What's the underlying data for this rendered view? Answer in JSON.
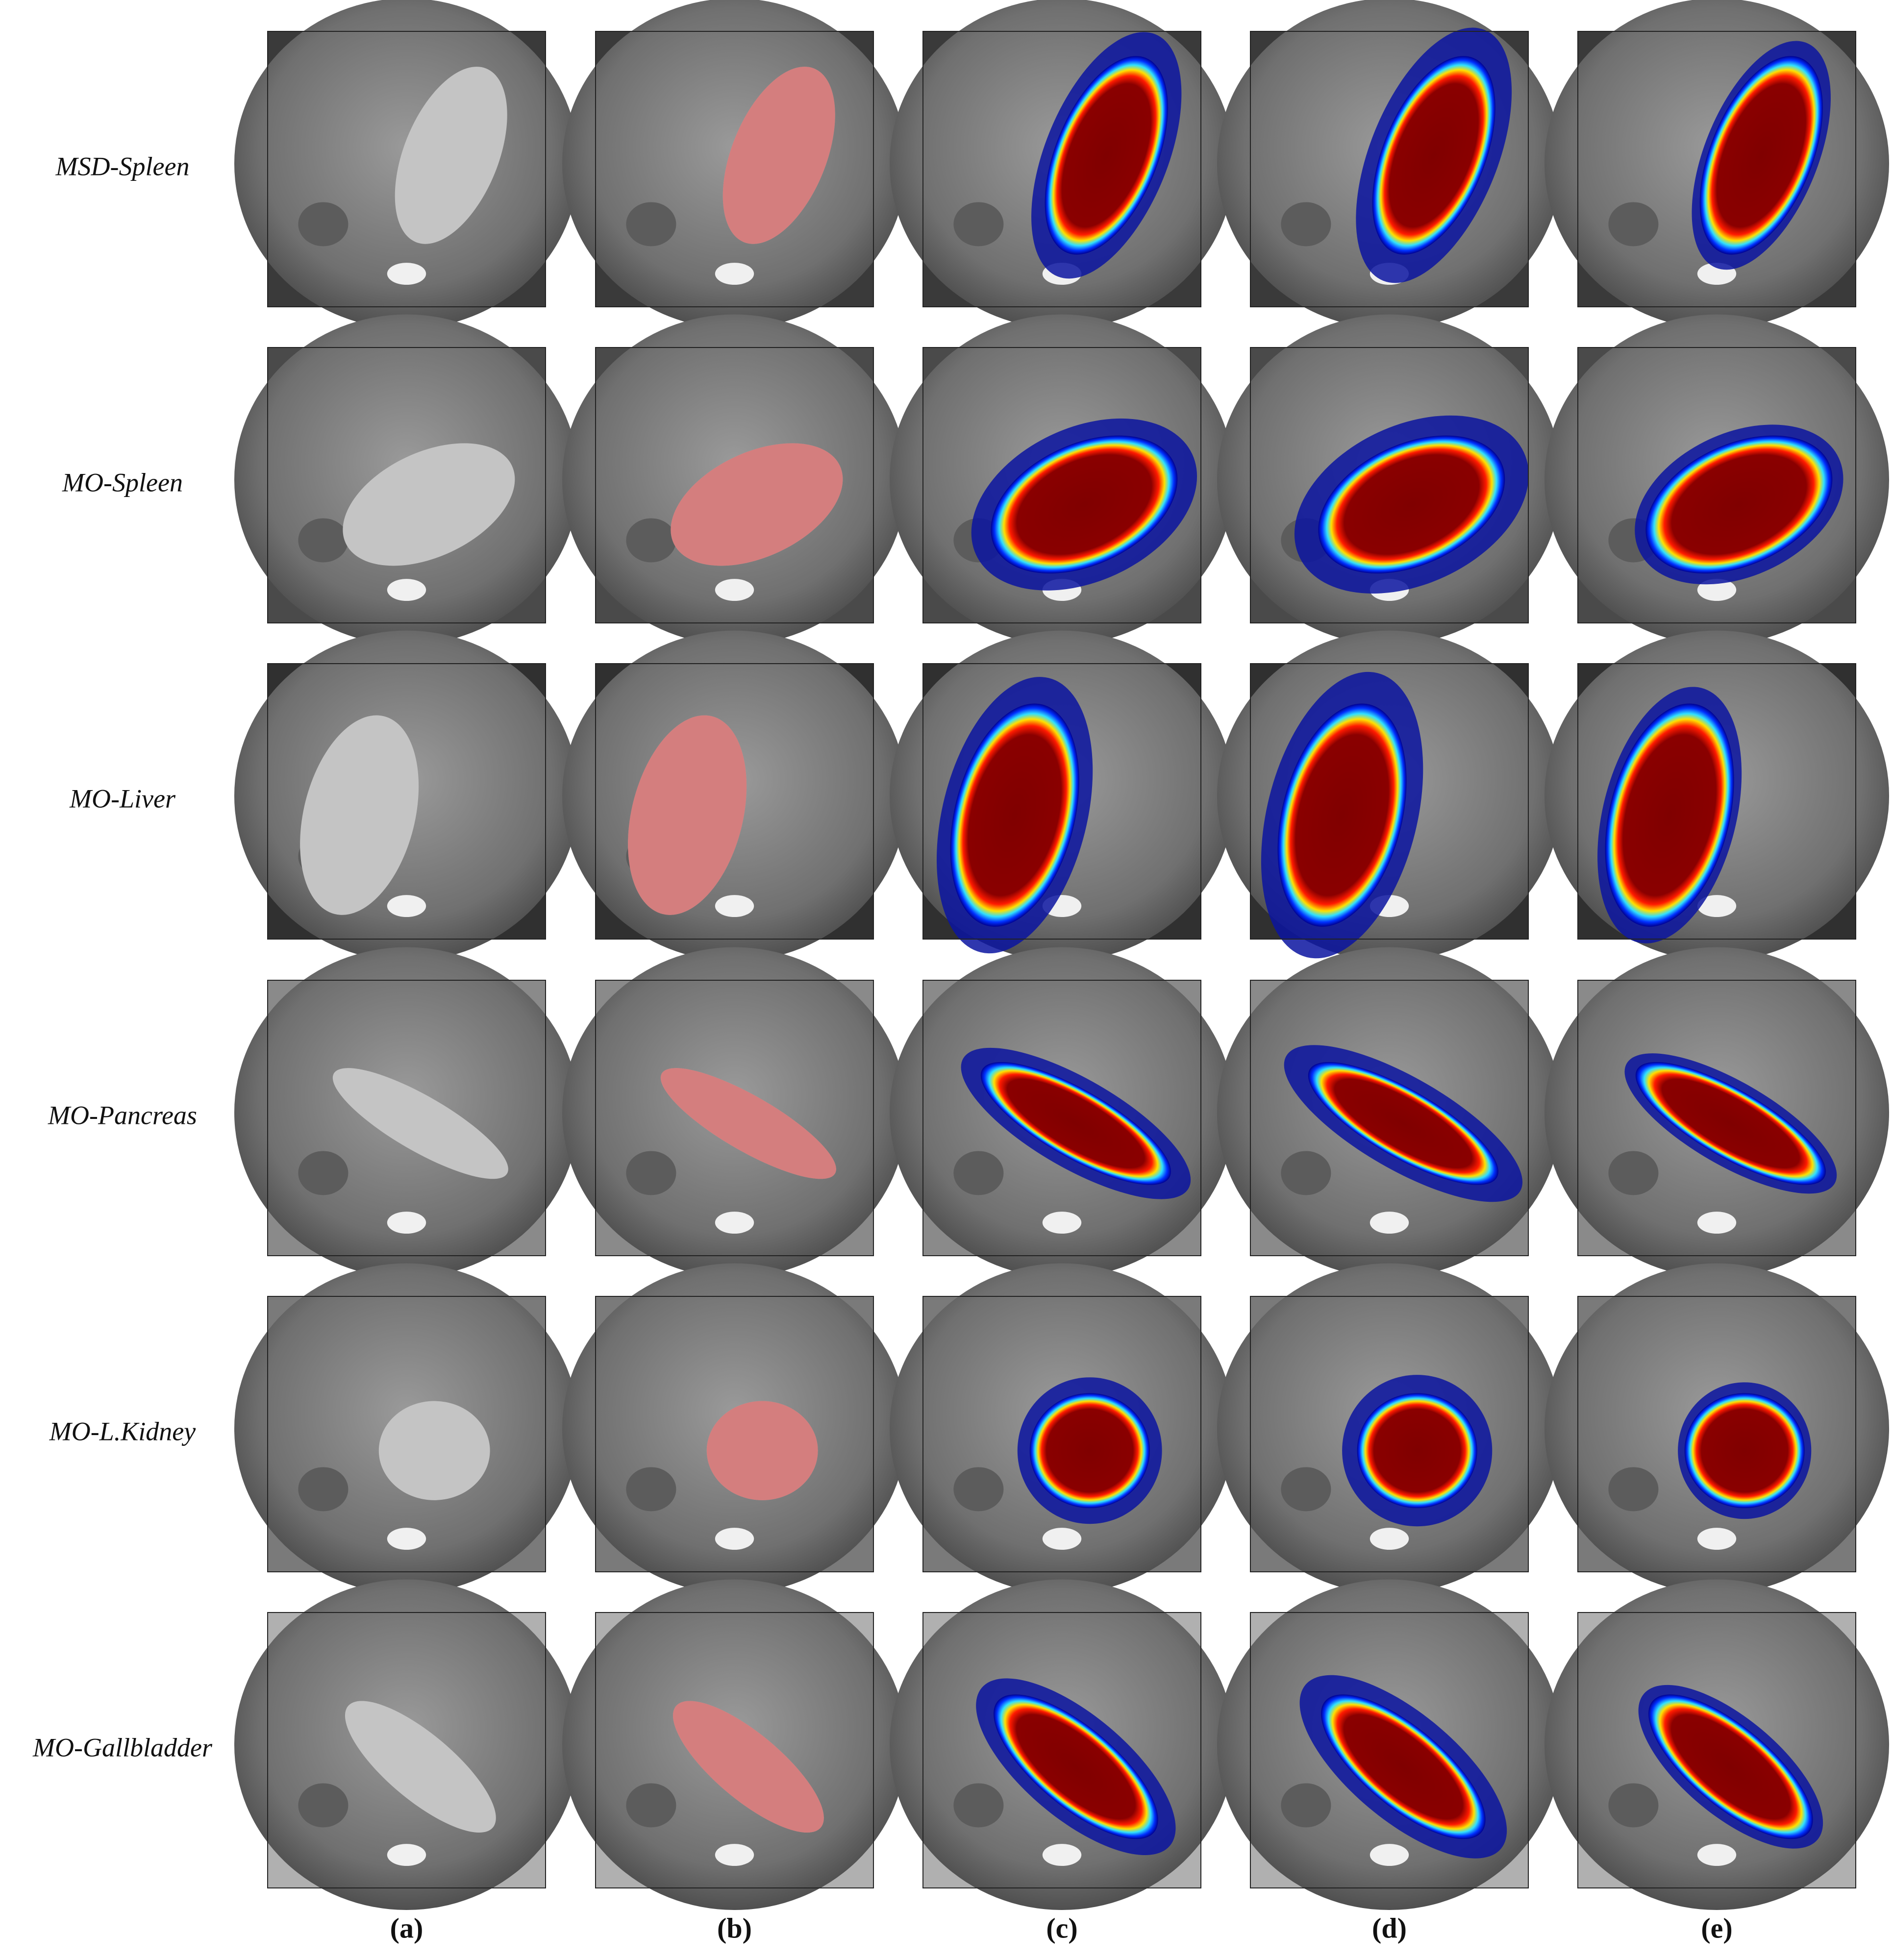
{
  "rows": [
    "MSD-Spleen",
    "MO-Spleen",
    "MO-Liver",
    "MO-Pancreas",
    "MO-L.Kidney",
    "MO-Gallbladder"
  ],
  "columns": [
    "(a)",
    "(b)",
    "(c)",
    "(d)",
    "(e)"
  ]
}
